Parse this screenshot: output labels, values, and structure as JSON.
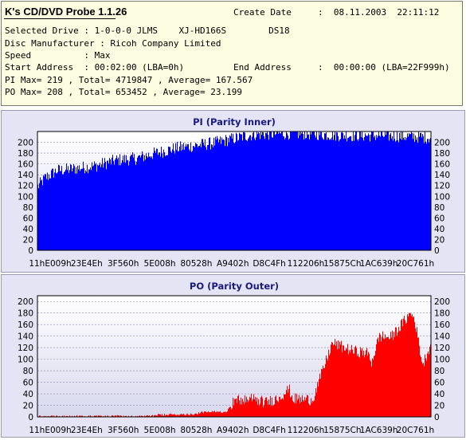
{
  "header": {
    "app_title": "K's CD/DVD Probe 1.1.26",
    "create_date_label": "Create Date",
    "create_date_value": ":  08.11.2003  22:11:12",
    "selected_drive_line": "Selected Drive : 1-0-0-0 JLMS    XJ-HD166S        DS18",
    "disc_manufacturer_line": "Disc Manufacturer : Ricoh Company Limited",
    "speed_line": "Speed          : Max",
    "start_address_line": "Start Address  : 00:02:00 (LBA=0h)",
    "end_address_label": "End Address",
    "end_address_value": ":  00:00:00 (LBA=22F999h)",
    "pi_summary": "PI Max= 219 , Total= 4719847 , Average= 167.567",
    "po_summary": "PO Max= 208 , Total= 653452 , Average= 23.199"
  },
  "chart_data": [
    {
      "type": "bar",
      "title": "PI (Parity Inner)",
      "color": "#0000ff",
      "ylim": [
        0,
        220
      ],
      "yticks": [
        0,
        20,
        40,
        60,
        80,
        100,
        120,
        140,
        160,
        180,
        200
      ],
      "grid": true,
      "xtick_labels": [
        "11hE009h",
        "23E4Eh",
        "3F560h",
        "5E008h",
        "80528h",
        "A9402h",
        "D8C4Fh",
        "112206h",
        "15875Ch",
        "1AC639h",
        "20C761h"
      ],
      "x": [
        0,
        2,
        5,
        8,
        10,
        15,
        20,
        25,
        30,
        35,
        40,
        45,
        50,
        55,
        60,
        65,
        70,
        75,
        80,
        85,
        90,
        95,
        100
      ],
      "values": [
        118,
        135,
        148,
        150,
        152,
        157,
        167,
        170,
        180,
        189,
        194,
        199,
        207,
        215,
        216,
        217,
        216,
        214,
        213,
        213,
        212,
        211,
        209
      ],
      "max": 219,
      "total": 4719847,
      "average": 167.567
    },
    {
      "type": "bar",
      "title": "PO (Parity Outer)",
      "color": "#ff0000",
      "ylim": [
        0,
        210
      ],
      "yticks": [
        0,
        20,
        40,
        60,
        80,
        100,
        120,
        140,
        160,
        180,
        200
      ],
      "grid": true,
      "xtick_labels": [
        "11hE009h",
        "23E4Eh",
        "3F560h",
        "5E008h",
        "80528h",
        "A9402h",
        "D8C4Fh",
        "112206h",
        "15875Ch",
        "1AC639h",
        "20C761h"
      ],
      "x": [
        0,
        10,
        28,
        30,
        40,
        42,
        48,
        50,
        55,
        58,
        61,
        64,
        65,
        70,
        75,
        78,
        80,
        84,
        85,
        87,
        90,
        95,
        96,
        98,
        100
      ],
      "values": [
        1,
        1,
        1,
        3,
        5,
        8,
        9,
        28,
        31,
        25,
        32,
        48,
        31,
        30,
        128,
        120,
        115,
        110,
        95,
        140,
        138,
        180,
        168,
        90,
        125
      ],
      "max": 208,
      "total": 653452,
      "average": 23.199
    }
  ]
}
